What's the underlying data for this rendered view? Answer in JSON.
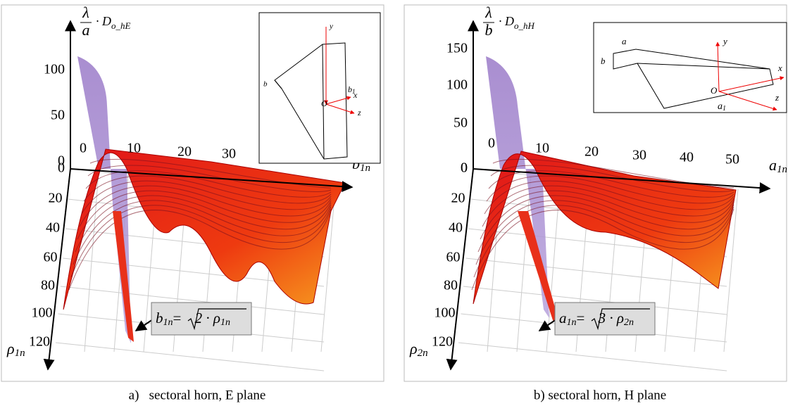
{
  "panels": [
    {
      "caption": "a)   sectoral horn, E plane",
      "z_label": {
        "numerator": "λ",
        "denominator": "a",
        "symbol": "· D",
        "subscript": "o_hE"
      },
      "z_ticks": [
        "100",
        "50",
        "0"
      ],
      "x_ticks": [
        "0",
        "10",
        "20",
        "30"
      ],
      "x_label": {
        "symbol": "b",
        "subscript": "1n"
      },
      "y_ticks": [
        "0",
        "20",
        "40",
        "60",
        "80",
        "100",
        "120"
      ],
      "y_label": {
        "symbol": "ρ",
        "subscript": "1n"
      },
      "formula": {
        "lhs": "b",
        "lhs_sub": "1n",
        "eq": "= ",
        "coef": "2 · ρ",
        "sub": "1n"
      },
      "inset": {
        "y": "y",
        "b": "b",
        "b1": "b",
        "b1_sub": "1",
        "x": "x",
        "O": "O",
        "z": "z"
      }
    },
    {
      "caption": "b) sectoral horn, H plane",
      "z_label": {
        "numerator": "λ",
        "denominator": "b",
        "symbol": "· D",
        "subscript": "o_hH"
      },
      "z_ticks": [
        "150",
        "100",
        "50",
        "0"
      ],
      "x_ticks": [
        "0",
        "10",
        "20",
        "30",
        "40",
        "50"
      ],
      "x_label": {
        "symbol": "a",
        "subscript": "1n"
      },
      "y_ticks": [
        "0",
        "20",
        "40",
        "60",
        "80",
        "100",
        "120"
      ],
      "y_label": {
        "symbol": "ρ",
        "subscript": "2n"
      },
      "formula": {
        "lhs": "a",
        "lhs_sub": "1n",
        "eq": "= ",
        "coef": "3 · ρ",
        "sub": "2n"
      },
      "inset": {
        "y": "y",
        "b": "b",
        "a": "a",
        "a1": "a",
        "a1_sub": "1",
        "x": "x",
        "O": "O",
        "z": "z"
      }
    }
  ]
}
